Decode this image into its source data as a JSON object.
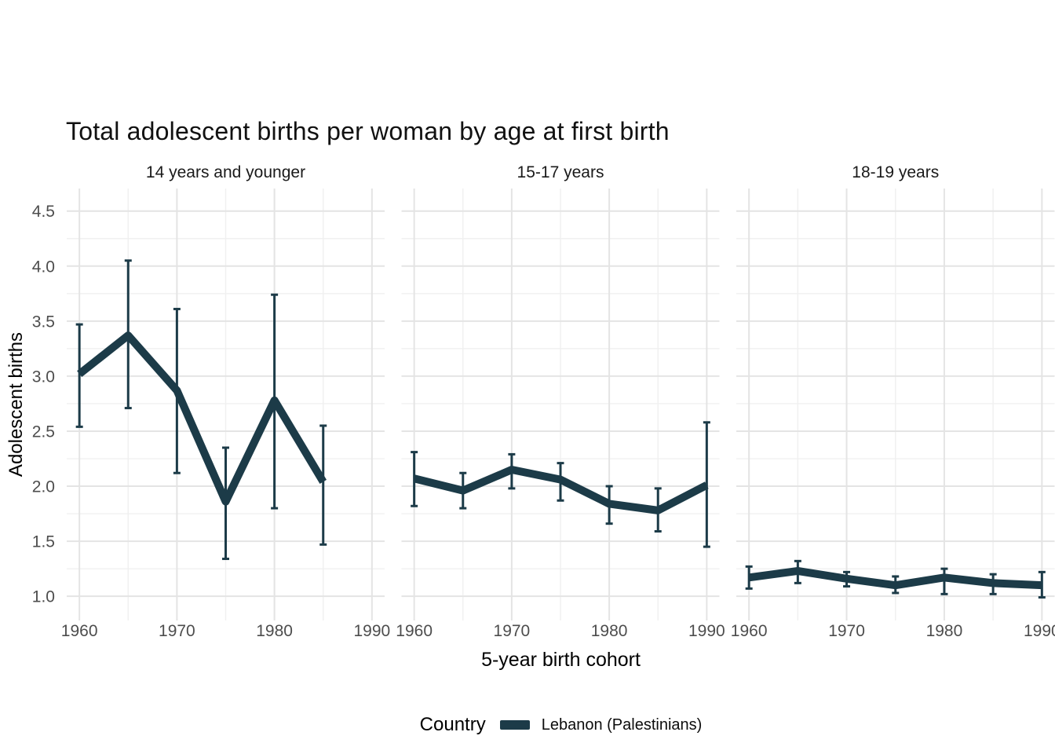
{
  "chart_data": {
    "type": "line",
    "title": "Total adolescent births per woman by age at first birth",
    "xlabel": "5-year birth cohort",
    "ylabel": "Adolescent births",
    "legend_title": "Country",
    "series_name": "Lebanon (Palestinians)",
    "series_color": "#1c3b48",
    "legend_position": "bottom",
    "grid": "major+minor",
    "xlim": [
      1958.7,
      1991.3
    ],
    "ylim": [
      0.78,
      4.705
    ],
    "x_major_ticks": [
      1960,
      1970,
      1980,
      1990
    ],
    "x_minor_ticks": [
      1965,
      1975,
      1985
    ],
    "x_tick_labels": [
      "1960",
      "1970",
      "1980",
      "1990"
    ],
    "y_major_ticks": [
      1.0,
      1.5,
      2.0,
      2.5,
      3.0,
      3.5,
      4.0,
      4.5
    ],
    "y_minor_ticks": [
      1.25,
      1.75,
      2.25,
      2.75,
      3.25,
      3.75,
      4.25
    ],
    "y_tick_labels": [
      "1.0",
      "1.5",
      "2.0",
      "2.5",
      "3.0",
      "3.5",
      "4.0",
      "4.5"
    ],
    "facets": [
      {
        "label": "14 years and younger",
        "x": [
          1960,
          1965,
          1970,
          1975,
          1980,
          1985
        ],
        "y": [
          3.02,
          3.37,
          2.87,
          1.86,
          2.78,
          2.04
        ],
        "ci_low": [
          2.54,
          2.71,
          2.12,
          1.34,
          1.8,
          1.47
        ],
        "ci_high": [
          3.47,
          4.05,
          3.61,
          2.35,
          3.74,
          2.55
        ]
      },
      {
        "label": "15-17 years",
        "x": [
          1960,
          1965,
          1970,
          1975,
          1980,
          1985,
          1990
        ],
        "y": [
          2.07,
          1.96,
          2.15,
          2.06,
          1.84,
          1.78,
          2.01
        ],
        "ci_low": [
          1.82,
          1.8,
          1.98,
          1.87,
          1.66,
          1.59,
          1.45
        ],
        "ci_high": [
          2.31,
          2.12,
          2.29,
          2.21,
          2.0,
          1.98,
          2.58
        ]
      },
      {
        "label": "18-19 years",
        "x": [
          1960,
          1965,
          1970,
          1975,
          1980,
          1985,
          1990
        ],
        "y": [
          1.17,
          1.23,
          1.16,
          1.1,
          1.17,
          1.12,
          1.1
        ],
        "ci_low": [
          1.07,
          1.12,
          1.09,
          1.03,
          1.02,
          1.02,
          0.99
        ],
        "ci_high": [
          1.27,
          1.32,
          1.22,
          1.18,
          1.25,
          1.2,
          1.22
        ]
      }
    ]
  },
  "legend": {
    "title": "Country",
    "items": [
      {
        "label": "Lebanon (Palestinians)",
        "color": "#1c3b48"
      }
    ]
  }
}
